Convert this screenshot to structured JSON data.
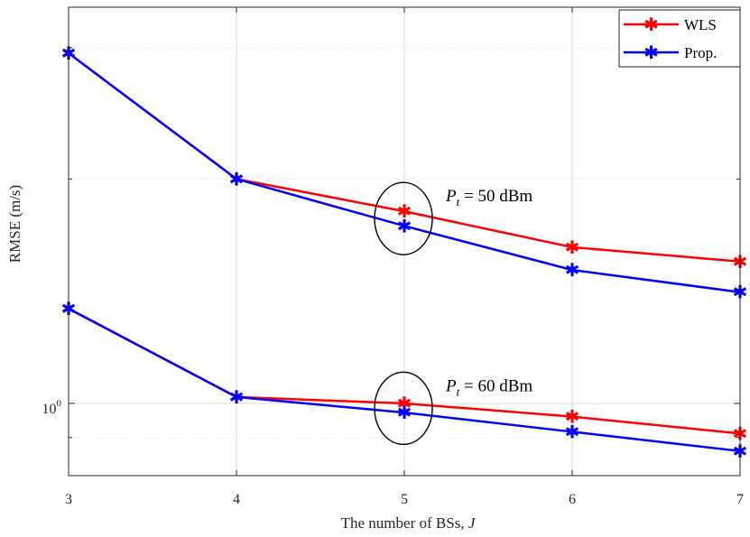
{
  "chart_data": {
    "type": "line",
    "title": "",
    "xlabel": "The number of BSs, ",
    "xlabel_var": "J",
    "ylabel": "RMSE (m/s)",
    "x": [
      3,
      4,
      5,
      6,
      7
    ],
    "xticks": [
      "3",
      "4",
      "5",
      "6",
      "7"
    ],
    "xlim": [
      3,
      7
    ],
    "yscale": "log",
    "ylim": [
      0.8,
      3.4
    ],
    "ytick_base": "10",
    "ytick_exp": "0",
    "minor_yticks": [
      0.9,
      2,
      3
    ],
    "grid": true,
    "legend_position": "top-right",
    "series": [
      {
        "name": "WLS",
        "color": "#ff0000",
        "group": "50",
        "values": [
          2.95,
          2.0,
          1.81,
          1.62,
          1.55
        ]
      },
      {
        "name": "Prop.",
        "color": "#0000ff",
        "group": "50",
        "values": [
          2.95,
          2.0,
          1.73,
          1.51,
          1.41
        ]
      },
      {
        "name": "WLS",
        "color": "#ff0000",
        "group": "60",
        "values": [
          1.34,
          1.02,
          1.0,
          0.96,
          0.911
        ]
      },
      {
        "name": "Prop.",
        "color": "#0000ff",
        "group": "60",
        "values": [
          1.34,
          1.02,
          0.972,
          0.916,
          0.863
        ]
      }
    ],
    "legend": [
      {
        "label": "WLS",
        "color": "#ff0000"
      },
      {
        "label": "Prop.",
        "color": "#0000ff"
      }
    ],
    "annotations": [
      {
        "var": "P",
        "sub": "t",
        "text": " = 50 dBm",
        "x": 5,
        "y": 1.77
      },
      {
        "var": "P",
        "sub": "t",
        "text": " = 60 dBm",
        "x": 5,
        "y": 0.985
      }
    ]
  }
}
